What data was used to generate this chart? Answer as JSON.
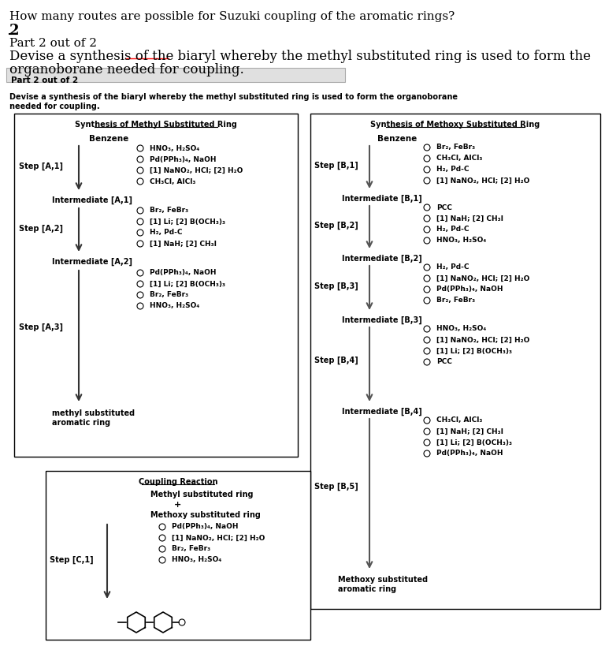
{
  "title_line1": "How many routes are possible for Suzuki coupling of the aromatic rings?",
  "title_line2": "2",
  "title_line3": "Part 2 out of 2",
  "title_line4": "Devise a synthesis of the biaryl whereby the methyl substituted ring is used to form the",
  "title_line5": "organoborane needed for coupling.",
  "banner_text": "Part 2 out of 2",
  "subtitle_small": "Devise a synthesis of the biaryl whereby the methyl substituted ring is used to form the organoborane\nneeded for coupling.",
  "methyl_box_title": "Synthesis of Methyl Substituted Ring",
  "methyl_start": "Benzene",
  "methyl_end": "methyl substituted\naromatic ring",
  "methyl_steps": [
    {
      "label": "Step [A,1]",
      "options": [
        "HNO₃, H₂SO₄",
        "Pd(PPh₃)₄, NaOH",
        "[1] NaNO₂, HCl; [2] H₂O",
        "CH₃Cl, AlCl₃"
      ]
    },
    {
      "label": "Step [A,2]",
      "options": [
        "Br₂, FeBr₃",
        "[1] Li; [2] B(OCH₃)₃",
        "H₂, Pd-C",
        "[1] NaH; [2] CH₃I"
      ]
    },
    {
      "label": "Step [A,3]",
      "options": [
        "Pd(PPh₃)₄, NaOH",
        "[1] Li; [2] B(OCH₃)₃",
        "Br₂, FeBr₃",
        "HNO₃, H₂SO₄"
      ]
    }
  ],
  "methyl_intermediates": [
    "Intermediate [A,1]",
    "Intermediate [A,2]"
  ],
  "methoxy_box_title": "Synthesis of Methoxy Substituted Ring",
  "methoxy_start": "Benzene",
  "methoxy_end": "Methoxy substituted\naromatic ring",
  "methoxy_steps": [
    {
      "label": "Step [B,1]",
      "options": [
        "Br₂, FeBr₃",
        "CH₃Cl, AlCl₃",
        "H₂, Pd-C",
        "[1] NaNO₂, HCl; [2] H₂O"
      ]
    },
    {
      "label": "Step [B,2]",
      "options": [
        "PCC",
        "[1] NaH; [2] CH₃I",
        "H₂, Pd-C",
        "HNO₃, H₂SO₄"
      ]
    },
    {
      "label": "Step [B,3]",
      "options": [
        "H₂, Pd-C",
        "[1] NaNO₂, HCl; [2] H₂O",
        "Pd(PPh₃)₄, NaOH",
        "Br₂, FeBr₃"
      ]
    },
    {
      "label": "Step [B,4]",
      "options": [
        "HNO₃, H₂SO₄",
        "[1] NaNO₂, HCl; [2] H₂O",
        "[1] Li; [2] B(OCH₃)₃",
        "PCC"
      ]
    },
    {
      "label": "Step [B,5]",
      "options": [
        "CH₃Cl, AlCl₃",
        "[1] NaH; [2] CH₃I",
        "[1] Li; [2] B(OCH₃)₃",
        "Pd(PPh₃)₄, NaOH"
      ]
    }
  ],
  "methoxy_intermediates": [
    "Intermediate [B,1]",
    "Intermediate [B,2]",
    "Intermediate [B,3]",
    "Intermediate [B,4]"
  ],
  "coupling_box_title": "Coupling Reaction",
  "coupling_line1": "Methyl substituted ring",
  "coupling_plus": "+",
  "coupling_line2": "Methoxy substituted ring",
  "coupling_step_label": "Step [C,1]",
  "coupling_options": [
    "Pd(PPh₃)₄, NaOH",
    "[1] NaNO₂, HCl; [2] H₂O",
    "Br₂, FeBr₃",
    "HNO₃, H₂SO₄"
  ],
  "bg_color": "#ffffff",
  "box_color": "#000000",
  "banner_bg": "#e0e0e0",
  "text_color": "#000000"
}
